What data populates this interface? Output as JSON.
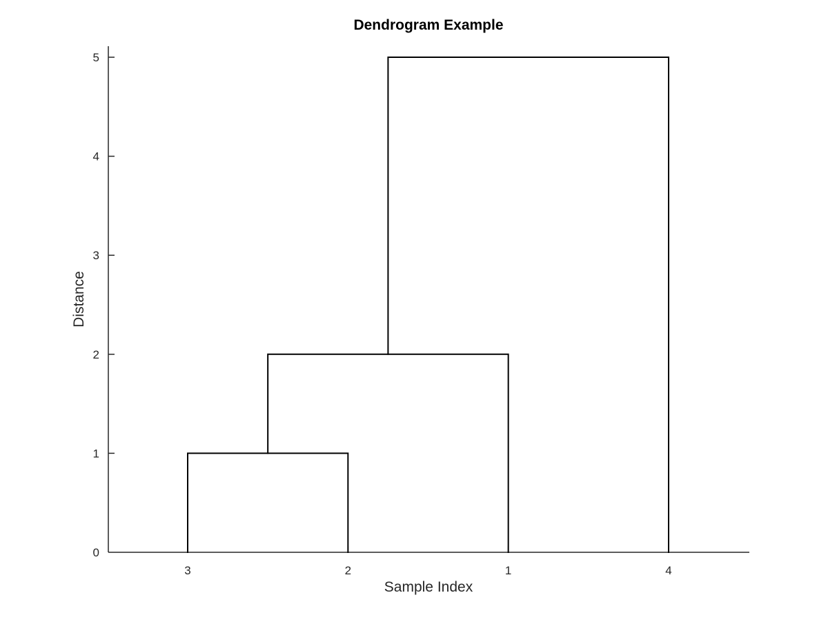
{
  "chart_data": {
    "type": "dendrogram",
    "title": "Dendrogram Example",
    "xlabel": "Sample Index",
    "ylabel": "Distance",
    "leaf_order": [
      "3",
      "2",
      "1",
      "4"
    ],
    "ylim": [
      0,
      5
    ],
    "yticks": [
      "0",
      "1",
      "2",
      "3",
      "4",
      "5"
    ],
    "merges": [
      {
        "left": "3",
        "right": "2",
        "height": 1
      },
      {
        "left": "3+2",
        "right": "1",
        "height": 2
      },
      {
        "left": "3+2+1",
        "right": "4",
        "height": 5
      }
    ],
    "grid": false,
    "colors": {
      "links": "#000000",
      "axes": "#262626"
    }
  }
}
